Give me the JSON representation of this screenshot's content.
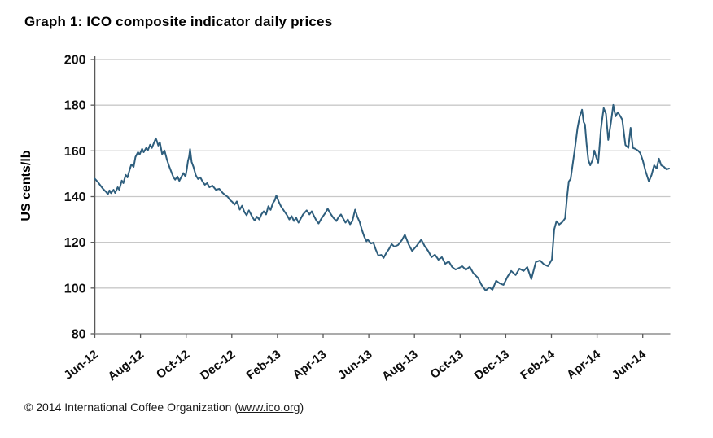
{
  "title": "Graph 1: ICO composite indicator daily prices",
  "footer": {
    "prefix": "© 2014 International Coffee Organization (",
    "link": "www.ico.org",
    "suffix": ")"
  },
  "colors": {
    "line": "#2e5e7d",
    "gridline": "#c8c8c8",
    "y_axis": "#595959",
    "x_axis": "#8f8f8f",
    "tick": "#595959",
    "text": "#0d0d0d"
  },
  "chart_data": {
    "type": "line",
    "title": "Graph 1: ICO composite indicator daily prices",
    "xlabel": "",
    "ylabel": "US cents/lb",
    "ylim": [
      80,
      200
    ],
    "yticks": [
      200,
      180,
      160,
      140,
      120,
      100,
      80
    ],
    "grid": "horizontal",
    "legend_position": "none",
    "x_unit": "months since Jun-2012",
    "xlim_months": [
      0,
      25.2
    ],
    "xtick_positions_months": [
      0,
      2,
      4,
      6,
      8,
      10,
      12,
      14,
      16,
      18,
      20,
      22,
      24
    ],
    "xtick_labels": [
      "Jun-12",
      "Aug-12",
      "Oct-12",
      "Dec-12",
      "Feb-13",
      "Apr-13",
      "Jun-13",
      "Aug-13",
      "Oct-13",
      "Dec-13",
      "Feb-14",
      "Apr-14",
      "Jun-14"
    ],
    "series": [
      {
        "name": "ICO composite indicator daily price",
        "color": "#2e5e7d",
        "points": [
          [
            0,
            147.8
          ],
          [
            0.14,
            146.3
          ],
          [
            0.25,
            144.8
          ],
          [
            0.36,
            143.4
          ],
          [
            0.5,
            142
          ],
          [
            0.57,
            141
          ],
          [
            0.64,
            142.7
          ],
          [
            0.71,
            141.5
          ],
          [
            0.82,
            143
          ],
          [
            0.89,
            141.6
          ],
          [
            1,
            144.1
          ],
          [
            1.07,
            143
          ],
          [
            1.18,
            147
          ],
          [
            1.25,
            145.9
          ],
          [
            1.35,
            149.5
          ],
          [
            1.43,
            148.4
          ],
          [
            1.53,
            151.9
          ],
          [
            1.6,
            154.1
          ],
          [
            1.7,
            153
          ],
          [
            1.78,
            157.3
          ],
          [
            1.89,
            159.4
          ],
          [
            1.96,
            158.4
          ],
          [
            2.07,
            160.9
          ],
          [
            2.14,
            159.4
          ],
          [
            2.25,
            161.3
          ],
          [
            2.32,
            160.2
          ],
          [
            2.42,
            162.7
          ],
          [
            2.5,
            161.3
          ],
          [
            2.6,
            163.7
          ],
          [
            2.67,
            165.5
          ],
          [
            2.72,
            164.2
          ],
          [
            2.78,
            162.3
          ],
          [
            2.85,
            163.8
          ],
          [
            2.95,
            158.5
          ],
          [
            3.05,
            160.2
          ],
          [
            3.15,
            156.4
          ],
          [
            3.25,
            153.4
          ],
          [
            3.35,
            150.8
          ],
          [
            3.45,
            148.3
          ],
          [
            3.52,
            147.4
          ],
          [
            3.62,
            148.8
          ],
          [
            3.7,
            146.9
          ],
          [
            3.78,
            148.4
          ],
          [
            3.88,
            150.3
          ],
          [
            3.97,
            148.8
          ],
          [
            4.03,
            152
          ],
          [
            4.08,
            155.5
          ],
          [
            4.13,
            157.5
          ],
          [
            4.17,
            160.8
          ],
          [
            4.24,
            155.2
          ],
          [
            4.32,
            153
          ],
          [
            4.42,
            149.4
          ],
          [
            4.52,
            147.7
          ],
          [
            4.62,
            148.4
          ],
          [
            4.72,
            146.6
          ],
          [
            4.82,
            145.2
          ],
          [
            4.92,
            145.9
          ],
          [
            5.02,
            144.1
          ],
          [
            5.15,
            144.8
          ],
          [
            5.3,
            143
          ],
          [
            5.45,
            143.4
          ],
          [
            5.6,
            141.6
          ],
          [
            5.72,
            140.6
          ],
          [
            5.82,
            139.9
          ],
          [
            5.92,
            138.5
          ],
          [
            6.02,
            137.7
          ],
          [
            6.12,
            136.5
          ],
          [
            6.22,
            137.9
          ],
          [
            6.35,
            134.3
          ],
          [
            6.45,
            136
          ],
          [
            6.55,
            133.3
          ],
          [
            6.65,
            131.8
          ],
          [
            6.75,
            134
          ],
          [
            6.9,
            131.1
          ],
          [
            7,
            129.5
          ],
          [
            7.1,
            131.2
          ],
          [
            7.2,
            130
          ],
          [
            7.3,
            132.3
          ],
          [
            7.4,
            133.6
          ],
          [
            7.5,
            132.2
          ],
          [
            7.6,
            135.8
          ],
          [
            7.7,
            134.2
          ],
          [
            7.8,
            137.2
          ],
          [
            7.88,
            138.3
          ],
          [
            7.95,
            140.5
          ],
          [
            8.05,
            137.9
          ],
          [
            8.15,
            135.8
          ],
          [
            8.3,
            133.6
          ],
          [
            8.42,
            131.8
          ],
          [
            8.52,
            130
          ],
          [
            8.62,
            131.5
          ],
          [
            8.72,
            129.3
          ],
          [
            8.82,
            130.7
          ],
          [
            8.92,
            128.6
          ],
          [
            9.02,
            130.4
          ],
          [
            9.12,
            132.2
          ],
          [
            9.28,
            134
          ],
          [
            9.4,
            132.2
          ],
          [
            9.5,
            133.6
          ],
          [
            9.6,
            131.5
          ],
          [
            9.7,
            129.6
          ],
          [
            9.8,
            128.2
          ],
          [
            9.9,
            130
          ],
          [
            10,
            131.5
          ],
          [
            10.1,
            132.9
          ],
          [
            10.2,
            134.7
          ],
          [
            10.3,
            132.9
          ],
          [
            10.45,
            130.7
          ],
          [
            10.58,
            129.3
          ],
          [
            10.68,
            131.1
          ],
          [
            10.78,
            132.2
          ],
          [
            10.88,
            130.4
          ],
          [
            10.98,
            128.6
          ],
          [
            11.08,
            130
          ],
          [
            11.18,
            127.9
          ],
          [
            11.28,
            129.3
          ],
          [
            11.4,
            134.3
          ],
          [
            11.5,
            131.1
          ],
          [
            11.6,
            128.9
          ],
          [
            11.7,
            125.4
          ],
          [
            11.8,
            122.5
          ],
          [
            11.9,
            120.4
          ],
          [
            11.95,
            121.2
          ],
          [
            12.1,
            119.5
          ],
          [
            12.2,
            119.9
          ],
          [
            12.3,
            117
          ],
          [
            12.42,
            114.2
          ],
          [
            12.55,
            114.5
          ],
          [
            12.65,
            113.2
          ],
          [
            12.78,
            115.6
          ],
          [
            12.88,
            117
          ],
          [
            13,
            119.2
          ],
          [
            13.12,
            118.1
          ],
          [
            13.28,
            118.8
          ],
          [
            13.45,
            121
          ],
          [
            13.58,
            123.3
          ],
          [
            13.75,
            119
          ],
          [
            13.9,
            116.2
          ],
          [
            14.1,
            118.5
          ],
          [
            14.3,
            121.2
          ],
          [
            14.45,
            118.3
          ],
          [
            14.6,
            116.3
          ],
          [
            14.75,
            113.5
          ],
          [
            14.9,
            114.6
          ],
          [
            15.05,
            112.4
          ],
          [
            15.2,
            113.5
          ],
          [
            15.35,
            110.6
          ],
          [
            15.5,
            111.7
          ],
          [
            15.65,
            109.2
          ],
          [
            15.8,
            108.1
          ],
          [
            15.95,
            108.8
          ],
          [
            16.1,
            109.5
          ],
          [
            16.25,
            108
          ],
          [
            16.42,
            109.3
          ],
          [
            16.58,
            106.5
          ],
          [
            16.78,
            104.5
          ],
          [
            16.93,
            101.5
          ],
          [
            17.12,
            98.9
          ],
          [
            17.28,
            100.3
          ],
          [
            17.42,
            99.3
          ],
          [
            17.58,
            103.2
          ],
          [
            17.73,
            102.1
          ],
          [
            17.9,
            101.4
          ],
          [
            18.08,
            105
          ],
          [
            18.24,
            107.5
          ],
          [
            18.43,
            105.7
          ],
          [
            18.6,
            108.5
          ],
          [
            18.78,
            107.5
          ],
          [
            18.94,
            109.2
          ],
          [
            19.12,
            103.9
          ],
          [
            19.32,
            111.4
          ],
          [
            19.5,
            112.1
          ],
          [
            19.68,
            110.3
          ],
          [
            19.85,
            109.6
          ],
          [
            20.02,
            112.5
          ],
          [
            20.12,
            125.6
          ],
          [
            20.22,
            129.2
          ],
          [
            20.34,
            127.8
          ],
          [
            20.48,
            128.9
          ],
          [
            20.6,
            130.5
          ],
          [
            20.68,
            139.5
          ],
          [
            20.76,
            146.6
          ],
          [
            20.84,
            147.7
          ],
          [
            20.94,
            154.8
          ],
          [
            21.04,
            161.9
          ],
          [
            21.14,
            169.8
          ],
          [
            21.24,
            175.1
          ],
          [
            21.34,
            178
          ],
          [
            21.41,
            172.6
          ],
          [
            21.47,
            171.5
          ],
          [
            21.54,
            163
          ],
          [
            21.62,
            155.9
          ],
          [
            21.7,
            153.7
          ],
          [
            21.8,
            155.9
          ],
          [
            21.88,
            160.2
          ],
          [
            21.96,
            157.3
          ],
          [
            22.05,
            154.8
          ],
          [
            22.17,
            169.8
          ],
          [
            22.29,
            178.7
          ],
          [
            22.39,
            176.2
          ],
          [
            22.49,
            164.8
          ],
          [
            22.61,
            172.6
          ],
          [
            22.71,
            180.1
          ],
          [
            22.81,
            175.1
          ],
          [
            22.91,
            176.9
          ],
          [
            23,
            175.5
          ],
          [
            23.1,
            173.7
          ],
          [
            23.24,
            162.6
          ],
          [
            23.37,
            161.3
          ],
          [
            23.47,
            170.1
          ],
          [
            23.57,
            161.3
          ],
          [
            23.67,
            160.9
          ],
          [
            23.79,
            160.2
          ],
          [
            23.89,
            159.1
          ],
          [
            24,
            155.9
          ],
          [
            24.12,
            151.2
          ],
          [
            24.27,
            146.6
          ],
          [
            24.39,
            149.5
          ],
          [
            24.5,
            153.7
          ],
          [
            24.61,
            152.3
          ],
          [
            24.71,
            156.6
          ],
          [
            24.81,
            153.7
          ],
          [
            24.93,
            153
          ],
          [
            25.04,
            151.9
          ],
          [
            25.15,
            152.3
          ]
        ]
      }
    ]
  }
}
